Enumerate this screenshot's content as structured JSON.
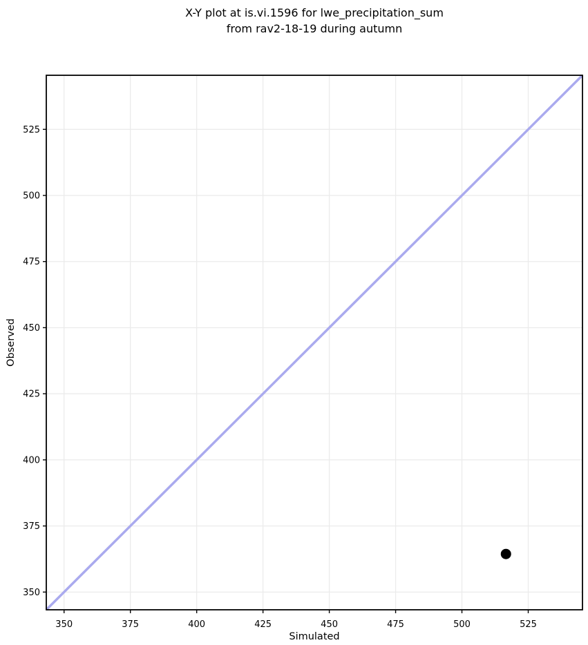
{
  "chart_data": {
    "type": "scatter",
    "title": "X-Y plot at is.vi.1596 for lwe_precipitation_sum\nfrom rav2-18-19 during autumn",
    "title_lines": [
      "X-Y plot at is.vi.1596 for lwe_precipitation_sum",
      "from rav2-18-19 during autumn"
    ],
    "xlabel": "Simulated",
    "ylabel": "Observed",
    "xlim": [
      343.3,
      545.45
    ],
    "ylim": [
      343.3,
      545.45
    ],
    "xticks": [
      350,
      375,
      400,
      425,
      450,
      475,
      500,
      525
    ],
    "yticks": [
      350,
      375,
      400,
      425,
      450,
      475,
      500,
      525
    ],
    "grid": true,
    "legend": false,
    "series": [
      {
        "name": "identity-line",
        "type": "line",
        "color": "#aaaaee",
        "line_width": 3.5,
        "points": [
          [
            343.3,
            343.3
          ],
          [
            545.45,
            545.45
          ]
        ]
      },
      {
        "name": "observed-vs-simulated-point",
        "type": "scatter",
        "color": "#000000",
        "marker_radius": 7.5,
        "points": [
          [
            516.6,
            364.4
          ]
        ]
      }
    ],
    "colors": {
      "background": "#ffffff",
      "grid": "#ebebeb",
      "spine": "#000000",
      "tick_label": "#000000",
      "axis_label": "#000000",
      "title": "#000000"
    }
  }
}
